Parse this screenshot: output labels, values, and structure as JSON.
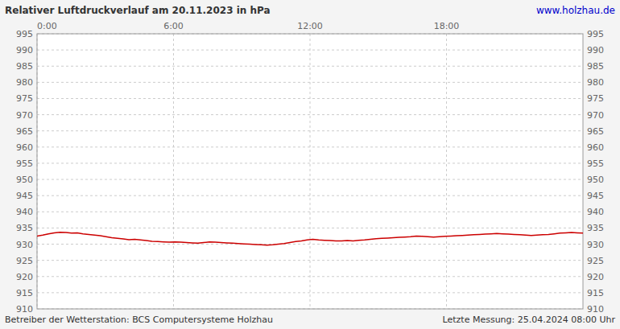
{
  "chart_data": {
    "type": "line",
    "title": "Relativer Luftdruckverlauf am 20.11.2023 in hPa",
    "subtitle": "www.holzhau.de",
    "annotations": [
      "Betreiber der Wetterstation: BCS Computersysteme Holzhau",
      "Letzte Messung: 25.04.2024 08:00 Uhr"
    ],
    "color": "#cc0000",
    "grid": true,
    "xlim": [
      0,
      24
    ],
    "xticks": [
      {
        "value": 0,
        "label": "0:00"
      },
      {
        "value": 6,
        "label": "6:00"
      },
      {
        "value": 12,
        "label": "12:00"
      },
      {
        "value": 18,
        "label": "18:00"
      }
    ],
    "ylim": [
      910,
      995
    ],
    "yticks": [
      910,
      915,
      920,
      925,
      930,
      935,
      940,
      945,
      950,
      955,
      960,
      965,
      970,
      975,
      980,
      985,
      990,
      995
    ],
    "x": [
      0,
      0.2526,
      0.5053,
      0.7579,
      1.0105,
      1.2632,
      1.5158,
      1.7684,
      2.0211,
      2.2737,
      2.5263,
      2.7789,
      3.0316,
      3.2842,
      3.5368,
      3.7895,
      4.0421,
      4.2947,
      4.5474,
      4.8,
      5.0526,
      5.3053,
      5.5579,
      5.8105,
      6.0632,
      6.3158,
      6.5684,
      6.8211,
      7.0737,
      7.3263,
      7.5789,
      7.8316,
      8.0842,
      8.3368,
      8.5895,
      8.8421,
      9.0947,
      9.3474,
      9.6,
      9.8526,
      10.1053,
      10.3579,
      10.6105,
      10.8632,
      11.1158,
      11.3684,
      11.6211,
      11.8737,
      12.1263,
      12.3789,
      12.6316,
      12.8842,
      13.1368,
      13.3895,
      13.6421,
      13.8947,
      14.1474,
      14.4,
      14.6526,
      14.9053,
      15.1579,
      15.4105,
      15.6632,
      15.9158,
      16.1684,
      16.4211,
      16.6737,
      16.9263,
      17.1789,
      17.4316,
      17.6842,
      17.9368,
      18.1895,
      18.4421,
      18.6947,
      18.9474,
      19.2,
      19.4526,
      19.7053,
      19.9579,
      20.2105,
      20.4632,
      20.7158,
      20.9684,
      21.2211,
      21.4737,
      21.7263,
      21.9789,
      22.2316,
      22.4842,
      22.7368,
      22.9895,
      23.2421,
      23.4947,
      23.7474,
      24
    ],
    "values": [
      932.5,
      932.8,
      933.2,
      933.5,
      933.7,
      933.6,
      933.4,
      933.5,
      933.2,
      933.0,
      932.8,
      932.6,
      932.3,
      932.0,
      931.8,
      931.6,
      931.4,
      931.5,
      931.3,
      931.1,
      930.9,
      930.8,
      930.7,
      930.6,
      930.7,
      930.6,
      930.5,
      930.4,
      930.3,
      930.5,
      930.7,
      930.6,
      930.5,
      930.4,
      930.3,
      930.2,
      930.1,
      930.0,
      929.9,
      929.8,
      929.7,
      929.8,
      930.0,
      930.2,
      930.5,
      930.8,
      931.0,
      931.3,
      931.5,
      931.3,
      931.2,
      931.1,
      931.0,
      931.0,
      931.1,
      931.0,
      931.2,
      931.3,
      931.5,
      931.7,
      931.8,
      931.9,
      932.0,
      932.1,
      932.2,
      932.3,
      932.5,
      932.4,
      932.3,
      932.2,
      932.3,
      932.4,
      932.5,
      932.6,
      932.7,
      932.8,
      932.9,
      933.0,
      933.1,
      933.2,
      933.3,
      933.2,
      933.1,
      933.0,
      932.9,
      932.8,
      932.7,
      932.8,
      932.9,
      933.0,
      933.2,
      933.4,
      933.5,
      933.6,
      933.5,
      933.4
    ]
  }
}
